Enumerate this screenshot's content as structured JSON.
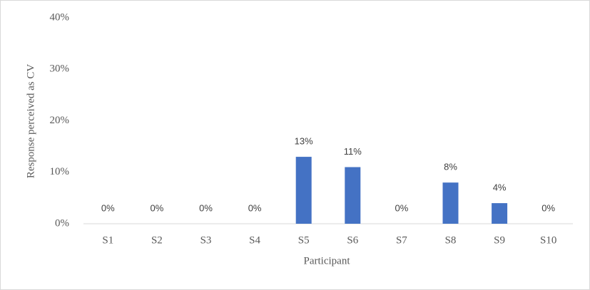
{
  "chart_data": {
    "type": "bar",
    "x_label": "Participant",
    "y_label": "Response perceived as CV",
    "categories": [
      "S1",
      "S2",
      "S3",
      "S4",
      "S5",
      "S6",
      "S7",
      "S8",
      "S9",
      "S10"
    ],
    "values": [
      0,
      0,
      0,
      0,
      13,
      11,
      0,
      8,
      4,
      0
    ],
    "value_labels": [
      "0%",
      "0%",
      "0%",
      "0%",
      "13%",
      "11%",
      "0%",
      "8%",
      "4%",
      "0%"
    ],
    "color": "#4472c4",
    "ylim": [
      0,
      40
    ],
    "yticks": [
      {
        "value": 0,
        "label": "0%"
      },
      {
        "value": 10,
        "label": "10%"
      },
      {
        "value": 20,
        "label": "20%"
      },
      {
        "value": 30,
        "label": "30%"
      },
      {
        "value": 40,
        "label": "40%"
      }
    ],
    "grid": false
  }
}
